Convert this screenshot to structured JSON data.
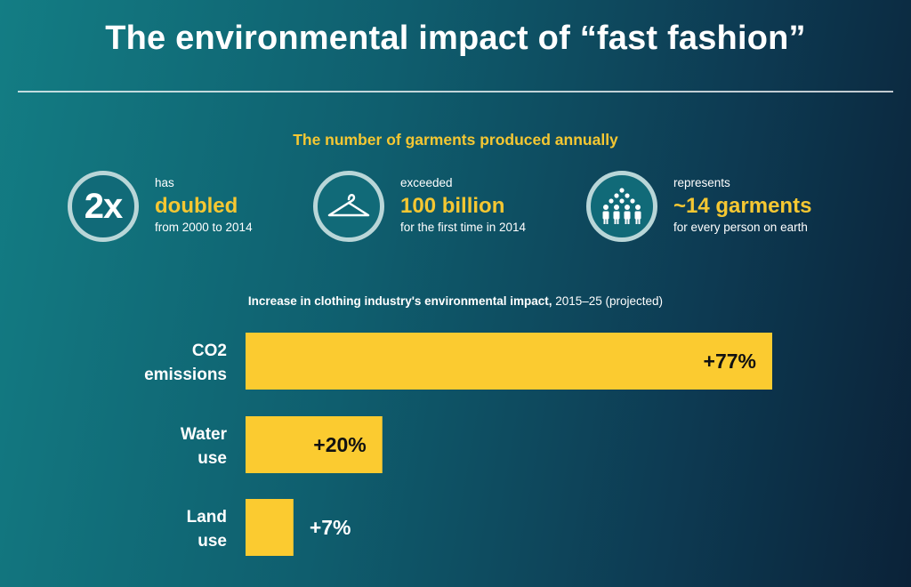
{
  "title": "The environmental impact of “fast fashion”",
  "subhead": "The number of garments produced annually",
  "stats": [
    {
      "icon": "2x",
      "pre": "has",
      "big": "doubled",
      "post": "from 2000 to 2014"
    },
    {
      "icon": "hanger-icon",
      "pre": "exceeded",
      "big": "100 billion",
      "post": "for the first time in 2014"
    },
    {
      "icon": "people-icon",
      "pre": "represents",
      "big": "~14 garments",
      "post": "for every person on earth"
    }
  ],
  "colors": {
    "accent": "#f5c732",
    "bar": "#fbcb30",
    "bar_label_inside": "#111111",
    "text": "#ffffff"
  },
  "chart_data": {
    "type": "bar",
    "orientation": "horizontal",
    "title_bold": "Increase in clothing industry's environmental impact,",
    "title_rest": " 2015–25 (projected)",
    "categories": [
      [
        "CO2",
        "emissions"
      ],
      [
        "Water",
        "use"
      ],
      [
        "Land",
        "use"
      ]
    ],
    "values": [
      77,
      20,
      7
    ],
    "value_labels": [
      "+77%",
      "+20%",
      "+7%"
    ],
    "unit": "%",
    "xlim": [
      0,
      77
    ],
    "grid": false,
    "legend": "none"
  }
}
